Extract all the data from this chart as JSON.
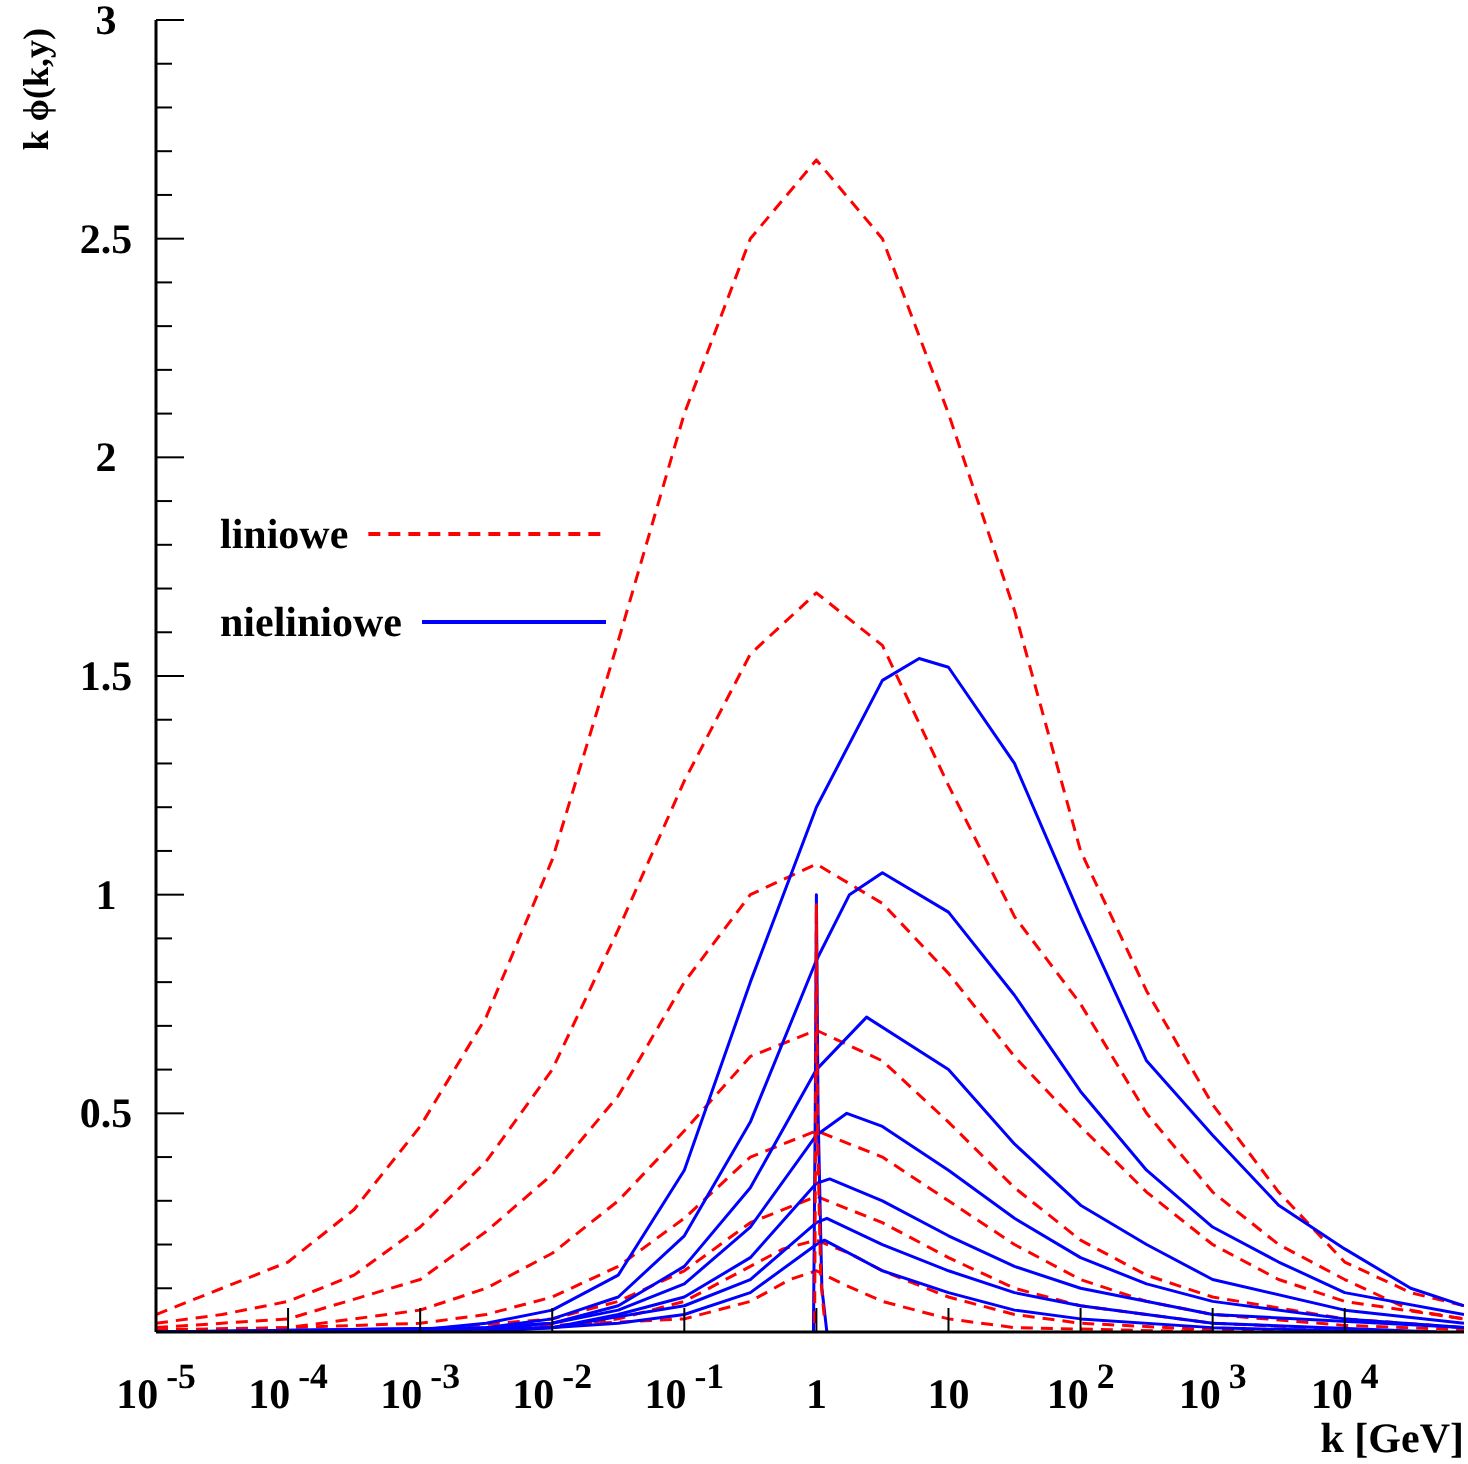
{
  "chart_data": {
    "type": "line",
    "xlabel": "k [GeV]",
    "ylabel": "k ϕ(k,y)",
    "log": "x",
    "legend": "left",
    "grid": false,
    "xlim": [
      1e-05,
      80000
    ],
    "ylim": [
      0,
      3
    ],
    "xticks": [
      {
        "value": 1e-05,
        "label": "10$^{-5}$"
      },
      {
        "value": 0.0001,
        "label": "10$^{-4}$"
      },
      {
        "value": 0.001,
        "label": "10$^{-3}$"
      },
      {
        "value": 0.01,
        "label": "10$^{-2}$"
      },
      {
        "value": 0.1,
        "label": "10$^{-1}$"
      },
      1,
      10,
      {
        "value": 100,
        "label": "10$^{2}$"
      },
      {
        "value": 1000,
        "label": "10$^{3}$"
      },
      {
        "value": 10000,
        "label": "10$^{4}$"
      }
    ],
    "yticks": [
      {
        "value": 0,
        "label": null
      },
      {
        "value": 0.1,
        "label": null
      },
      {
        "value": 0.2,
        "label": null
      },
      {
        "value": 0.3,
        "label": null
      },
      {
        "value": 0.4,
        "label": null
      },
      0.5,
      {
        "value": 0.6,
        "label": null
      },
      {
        "value": 0.7,
        "label": null
      },
      {
        "value": 0.8,
        "label": null
      },
      {
        "value": 0.9,
        "label": null
      },
      1,
      {
        "value": 1.1,
        "label": null
      },
      {
        "value": 1.2,
        "label": null
      },
      {
        "value": 1.3,
        "label": null
      },
      {
        "value": 1.4,
        "label": null
      },
      1.5,
      {
        "value": 1.6,
        "label": null
      },
      {
        "value": 1.7,
        "label": null
      },
      {
        "value": 1.8,
        "label": null
      },
      {
        "value": 1.9,
        "label": null
      },
      2,
      {
        "value": 2.1,
        "label": null
      },
      {
        "value": 2.2,
        "label": null
      },
      {
        "value": 2.3,
        "label": null
      },
      {
        "value": 2.4,
        "label": null
      },
      2.5,
      {
        "value": 2.6,
        "label": null
      },
      {
        "value": 2.7,
        "label": null
      },
      {
        "value": 2.8,
        "label": null
      },
      {
        "value": 2.9,
        "label": null
      },
      3
    ],
    "series": [
      {
        "name": "liniowe",
        "color": "#ff0000",
        "line_style": "dashed",
        "x": [
          1e-05,
          3.16e-05,
          0.0001,
          0.000316,
          0.001,
          0.00316,
          0.01,
          0.0316,
          0.1,
          0.316,
          1,
          3.16,
          10,
          31.6,
          100,
          316,
          1000,
          3160,
          10000,
          31600,
          80000
        ],
        "values": [
          0.04,
          0.1,
          0.16,
          0.28,
          0.47,
          0.72,
          1.08,
          1.58,
          2.1,
          2.5,
          2.68,
          2.5,
          2.1,
          1.65,
          1.1,
          0.78,
          0.52,
          0.32,
          0.16,
          0.09,
          0.06
        ]
      },
      {
        "color": "#ff0000",
        "line_style": "dashed",
        "x": [
          1e-05,
          3.16e-05,
          0.0001,
          0.000316,
          0.001,
          0.00316,
          0.01,
          0.0316,
          0.1,
          0.316,
          1,
          3.16,
          10,
          31.6,
          100,
          316,
          1000,
          3160,
          10000,
          31600,
          80000
        ],
        "values": [
          0.02,
          0.04,
          0.07,
          0.13,
          0.24,
          0.39,
          0.6,
          0.92,
          1.26,
          1.55,
          1.69,
          1.57,
          1.25,
          0.95,
          0.75,
          0.5,
          0.32,
          0.2,
          0.12,
          0.05,
          0.03
        ]
      },
      {
        "color": "#ff0000",
        "line_style": "dashed",
        "x": [
          1e-05,
          0.0001,
          0.001,
          0.00316,
          0.01,
          0.0316,
          0.1,
          0.316,
          1,
          3.16,
          10,
          31.6,
          100,
          316,
          1000,
          3160,
          10000,
          80000
        ],
        "values": [
          0.01,
          0.03,
          0.12,
          0.23,
          0.36,
          0.54,
          0.8,
          1.0,
          1.07,
          0.98,
          0.82,
          0.63,
          0.47,
          0.32,
          0.2,
          0.12,
          0.07,
          0.03
        ]
      },
      {
        "color": "#ff0000",
        "line_style": "dashed",
        "x": [
          1e-05,
          0.0001,
          0.001,
          0.00316,
          0.01,
          0.0316,
          0.1,
          0.316,
          1,
          3.16,
          10,
          31.6,
          100,
          316,
          1000,
          10000,
          80000
        ],
        "values": [
          0.005,
          0.01,
          0.05,
          0.1,
          0.18,
          0.3,
          0.46,
          0.63,
          0.69,
          0.62,
          0.48,
          0.33,
          0.21,
          0.13,
          0.08,
          0.03,
          0.01
        ]
      },
      {
        "color": "#ff0000",
        "line_style": "dashed",
        "x": [
          1e-05,
          0.001,
          0.00316,
          0.01,
          0.0316,
          0.1,
          0.316,
          1,
          3.16,
          10,
          31.6,
          100,
          316,
          1000,
          10000,
          80000
        ],
        "values": [
          0,
          0.02,
          0.04,
          0.08,
          0.15,
          0.26,
          0.4,
          0.46,
          0.4,
          0.3,
          0.2,
          0.12,
          0.07,
          0.04,
          0.015,
          0.005
        ]
      },
      {
        "color": "#ff0000",
        "line_style": "dashed",
        "x": [
          0.0001,
          0.001,
          0.01,
          0.0316,
          0.1,
          0.316,
          1,
          3.16,
          10,
          31.6,
          100,
          1000,
          30000
        ],
        "values": [
          0,
          0.005,
          0.03,
          0.07,
          0.14,
          0.25,
          0.31,
          0.25,
          0.17,
          0.1,
          0.06,
          0.02,
          0
        ]
      },
      {
        "color": "#ff0000",
        "line_style": "dashed",
        "x": [
          0.000316,
          0.01,
          0.0316,
          0.1,
          0.316,
          0.56,
          1,
          1.78,
          3.16,
          10,
          31.6,
          100,
          1000,
          10000
        ],
        "values": [
          0,
          0.01,
          0.03,
          0.07,
          0.15,
          0.19,
          0.21,
          0.18,
          0.14,
          0.08,
          0.04,
          0.02,
          0.005,
          0
        ]
      },
      {
        "color": "#ff0000",
        "line_style": "dashed",
        "x": [
          0.001,
          0.1,
          0.316,
          0.63,
          1,
          1.58,
          3.16,
          10,
          31.6,
          1000
        ],
        "values": [
          0,
          0.03,
          0.07,
          0.12,
          0.14,
          0.11,
          0.07,
          0.03,
          0.01,
          0
        ]
      },
      {
        "name": "nieliniowe",
        "color": "#0000ff",
        "line_style": "solid",
        "x": [
          1e-05,
          0.001,
          0.00316,
          0.01,
          0.0316,
          0.1,
          0.316,
          1,
          3.16,
          6,
          10,
          31.6,
          100,
          316,
          1000,
          3160,
          10000,
          31600,
          80000
        ],
        "values": [
          0,
          0.005,
          0.02,
          0.05,
          0.13,
          0.37,
          0.8,
          1.2,
          1.49,
          1.54,
          1.52,
          1.3,
          0.95,
          0.62,
          0.45,
          0.29,
          0.19,
          0.1,
          0.06
        ]
      },
      {
        "color": "#0000ff",
        "line_style": "solid",
        "x": [
          1e-05,
          0.001,
          0.00316,
          0.01,
          0.0316,
          0.1,
          0.316,
          1,
          1.78,
          3.16,
          10,
          31.6,
          100,
          316,
          1000,
          3160,
          10000,
          80000
        ],
        "values": [
          0,
          0,
          0.01,
          0.03,
          0.08,
          0.22,
          0.48,
          0.85,
          1.0,
          1.05,
          0.96,
          0.77,
          0.55,
          0.37,
          0.24,
          0.16,
          0.09,
          0.04
        ]
      },
      {
        "color": "#0000ff",
        "line_style": "solid",
        "x": [
          1e-05,
          0.00316,
          0.01,
          0.0316,
          0.1,
          0.316,
          1,
          2.4,
          10,
          31.6,
          100,
          316,
          1000,
          10000,
          80000
        ],
        "values": [
          0,
          0.01,
          0.02,
          0.06,
          0.15,
          0.33,
          0.6,
          0.72,
          0.6,
          0.43,
          0.29,
          0.2,
          0.12,
          0.05,
          0.02
        ]
      },
      {
        "color": "#0000ff",
        "line_style": "solid",
        "x": [
          1e-05,
          0.00316,
          0.01,
          0.0316,
          0.1,
          0.316,
          1,
          1.7,
          3.16,
          10,
          31.6,
          100,
          316,
          1000,
          10000,
          80000
        ],
        "values": [
          0,
          0.01,
          0.02,
          0.05,
          0.11,
          0.24,
          0.45,
          0.5,
          0.47,
          0.37,
          0.26,
          0.17,
          0.11,
          0.07,
          0.03,
          0.01
        ]
      },
      {
        "color": "#0000ff",
        "line_style": "solid",
        "x": [
          0.0001,
          0.01,
          0.0316,
          0.1,
          0.316,
          1,
          1.26,
          3.16,
          10,
          31.6,
          100,
          1000,
          80000
        ],
        "values": [
          0,
          0.01,
          0.04,
          0.08,
          0.17,
          0.34,
          0.35,
          0.3,
          0.22,
          0.15,
          0.1,
          0.04,
          0.01
        ]
      },
      {
        "color": "#0000ff",
        "line_style": "solid",
        "x": [
          0.000316,
          0.01,
          0.1,
          0.316,
          1,
          1.2,
          3.16,
          10,
          31.6,
          100,
          1000,
          50000
        ],
        "values": [
          0,
          0.01,
          0.06,
          0.12,
          0.25,
          0.26,
          0.2,
          0.14,
          0.09,
          0.06,
          0.02,
          0
        ]
      },
      {
        "color": "#0000ff",
        "line_style": "solid",
        "x": [
          0.003,
          0.0316,
          0.1,
          0.316,
          1,
          1.15,
          3.16,
          10,
          31.6,
          100,
          1000,
          20000
        ],
        "values": [
          0,
          0.02,
          0.04,
          0.09,
          0.2,
          0.21,
          0.14,
          0.09,
          0.05,
          0.03,
          0.01,
          0
        ]
      },
      {
        "color": "#0000ff",
        "line_style": "solid",
        "x": [
          0.95,
          0.98,
          1,
          1.03,
          1.1,
          1.2
        ],
        "values": [
          0,
          0.5,
          1.0,
          0.5,
          0.1,
          0
        ]
      },
      {
        "color": "#ff0000",
        "line_style": "dashed",
        "x": [
          0.97,
          0.99,
          1,
          1.02,
          1.08,
          1.15
        ],
        "values": [
          0.02,
          0.6,
          0.98,
          0.45,
          0.12,
          0.03
        ]
      }
    ]
  }
}
